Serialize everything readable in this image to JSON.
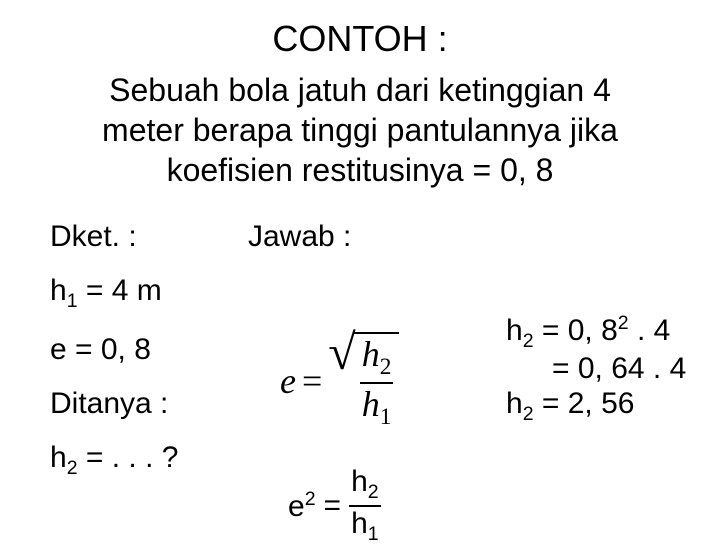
{
  "colors": {
    "bg": "#ffffff",
    "text": "#000000"
  },
  "fonts": {
    "body": "Arial",
    "math": "Times New Roman"
  },
  "title": "CONTOH :",
  "problem_line1": "Sebuah bola jatuh dari ketinggian 4",
  "problem_line2": "meter berapa tinggi pantulannya jika",
  "problem_line3": "koefisien restitusinya = 0, 8",
  "left": {
    "dket": "Dket. :",
    "h1": "h",
    "h1_sub": "1",
    "h1_eq": " = 4 m",
    "e": "e = 0, 8",
    "ditanya": "Ditanya :",
    "h2": "h",
    "h2_sub": "2",
    "h2_eq": " = . . . ?"
  },
  "mid": {
    "jawab": "Jawab :",
    "e_var": "e",
    "equals": "=",
    "frac_num_sym": "h",
    "frac_num_sub": "2",
    "frac_den_sym": "h",
    "frac_den_sub": "1",
    "e2_lhs_sym": "e",
    "e2_lhs_sup": "2",
    "e2_eq": "="
  },
  "right": {
    "line1_a": "h",
    "line1_sub": "2",
    "line1_b": " = 0, 8",
    "line1_sup": "2",
    "line1_c": " . 4",
    "line2": "= 0, 64 . 4",
    "line3_a": "h",
    "line3_sub": "2",
    "line3_b": " = 2, 56"
  }
}
